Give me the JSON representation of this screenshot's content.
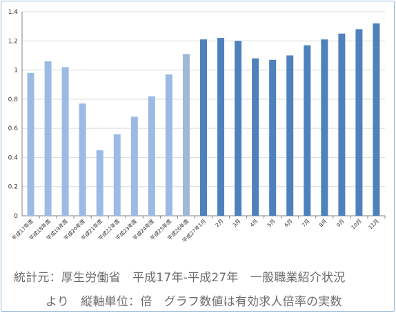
{
  "chart_data": {
    "type": "bar",
    "categories": [
      "平成17年度",
      "平成18年度",
      "平成19年度",
      "平成20年度",
      "平成21年度",
      "平成22年度",
      "平成23年度",
      "平成24年度",
      "平成25年度",
      "平成26年度",
      "平成27年1月",
      "2月",
      "3月",
      "4月",
      "5月",
      "6月",
      "7月",
      "8月",
      "9月",
      "10月",
      "11月"
    ],
    "values": [
      0.98,
      1.06,
      1.02,
      0.77,
      0.45,
      0.56,
      0.68,
      0.82,
      0.97,
      1.11,
      1.21,
      1.22,
      1.2,
      1.08,
      1.07,
      1.1,
      1.17,
      1.21,
      1.25,
      1.28,
      1.32
    ],
    "bar_colors": [
      "#9bbbe5",
      "#9bbbe5",
      "#9bbbe5",
      "#9bbbe5",
      "#9bbbe5",
      "#9bbbe5",
      "#9bbbe5",
      "#9bbbe5",
      "#9bbbe5",
      "#9fb8d8",
      "#4f81bd",
      "#4f81bd",
      "#4f81bd",
      "#4f81bd",
      "#4f81bd",
      "#4f81bd",
      "#4f81bd",
      "#4f81bd",
      "#4f81bd",
      "#4f81bd",
      "#4f81bd"
    ],
    "y_ticks": [
      "0",
      "0.2",
      "0.4",
      "0.6",
      "0.8",
      "1",
      "1.2",
      "1.4"
    ],
    "ylim": [
      0,
      1.4
    ],
    "grid": true,
    "legend": "none"
  },
  "caption": {
    "line1": "統計元：厚生労働省　平成17年-平成27年　一般職業紹介状況",
    "line2": "より　縦軸単位：倍　グラフ数値は有効求人倍率の実数"
  },
  "colors": {
    "gridline": "#d9d9d9",
    "axis": "#808080",
    "frame": "#8fb3d9"
  }
}
